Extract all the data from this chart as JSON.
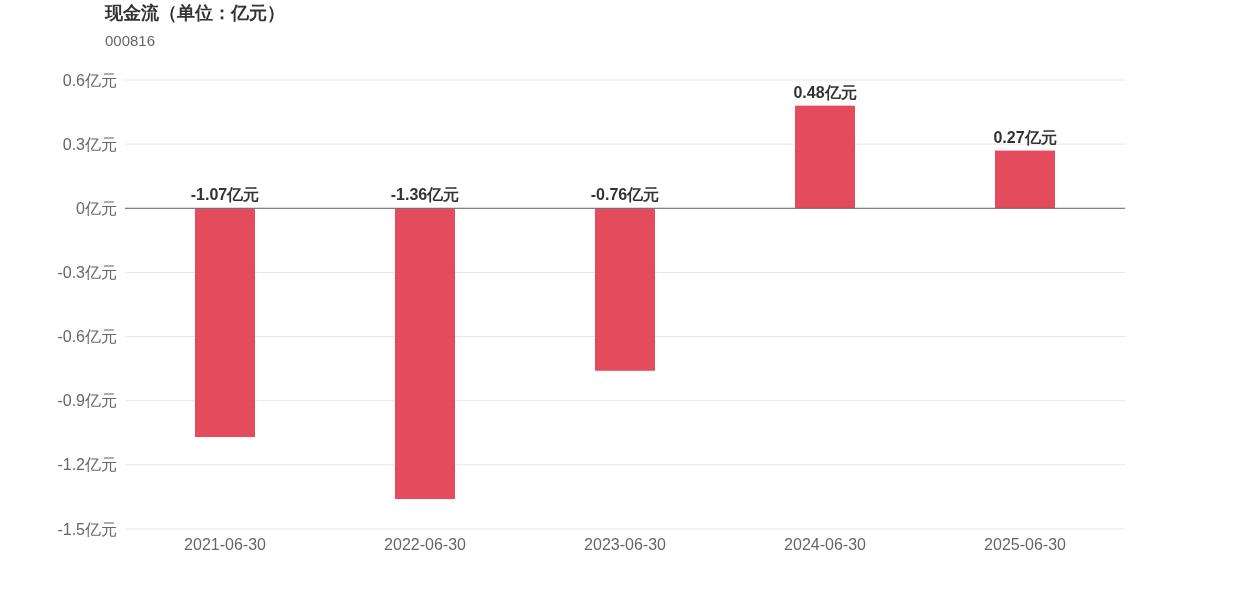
{
  "chart_data": {
    "type": "bar",
    "title": "现金流（单位：亿元）",
    "subtitle": "000816",
    "categories": [
      "2021-06-30",
      "2022-06-30",
      "2023-06-30",
      "2024-06-30",
      "2025-06-30"
    ],
    "values": [
      -1.07,
      -1.36,
      -0.76,
      0.48,
      0.27
    ],
    "color": "#e44c5e",
    "value_labels": [
      "-1.07亿元",
      "-1.36亿元",
      "-0.76亿元",
      "0.48亿元",
      "0.27亿元"
    ],
    "ylim": [
      -1.5,
      0.6
    ],
    "yticks": [
      {
        "value": 0.6,
        "label": "0.6亿元"
      },
      {
        "value": 0.3,
        "label": "0.3亿元"
      },
      {
        "value": 0,
        "label": "0亿元"
      },
      {
        "value": -0.3,
        "label": "-0.3亿元"
      },
      {
        "value": -0.6,
        "label": "-0.6亿元"
      },
      {
        "value": -0.9,
        "label": "-0.9亿元"
      },
      {
        "value": -1.2,
        "label": "-1.2亿元"
      },
      {
        "value": -1.5,
        "label": "-1.5亿元"
      }
    ],
    "grid": "y"
  }
}
